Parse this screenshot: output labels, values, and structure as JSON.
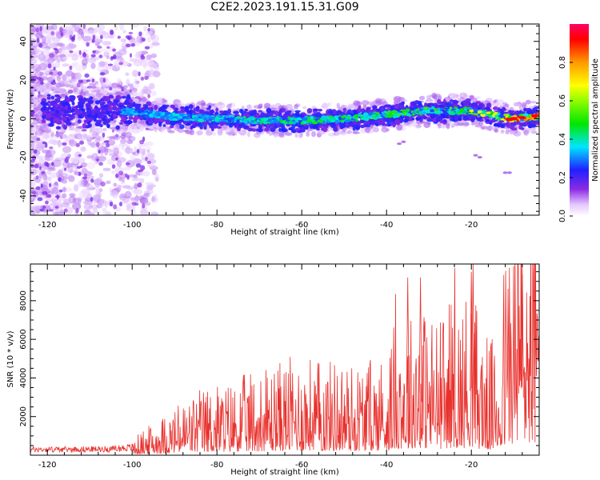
{
  "title": "C2E2.2023.191.15.31.G09",
  "chart_data": [
    {
      "type": "heatmap",
      "xlabel": "Height of straight line (km)",
      "ylabel": "Frequency (Hz)",
      "xlim": [
        -124,
        -4
      ],
      "ylim": [
        -50,
        49
      ],
      "x_ticks": [
        "-120",
        "-100",
        "-80",
        "-60",
        "-40",
        "-20"
      ],
      "x_tick_values": [
        -120,
        -100,
        -80,
        -60,
        -40,
        -20
      ],
      "y_ticks": [
        "-40",
        "-20",
        "0",
        "20",
        "40"
      ],
      "y_tick_values": [
        -40,
        -20,
        0,
        20,
        40
      ],
      "colorbar": {
        "label": "Normalized spectral amplitude",
        "ticks": [
          "0.0",
          "0.2",
          "0.4",
          "0.6",
          "0.8"
        ],
        "tick_values": [
          0.0,
          0.2,
          0.4,
          0.6,
          0.8
        ],
        "range": [
          0,
          1
        ]
      },
      "ridge": {
        "description_points_x": [
          -103,
          -90,
          -80,
          -70,
          -60,
          -50,
          -40,
          -30,
          -20,
          -10,
          -4
        ],
        "center_freq": [
          4,
          1,
          0,
          -1,
          -1,
          0,
          2,
          4,
          4,
          0,
          1
        ],
        "peak_amplitude": [
          0.3,
          0.35,
          0.35,
          0.4,
          0.45,
          0.45,
          0.5,
          0.5,
          0.5,
          0.95,
          0.9
        ]
      }
    },
    {
      "type": "line",
      "xlabel": "Height of straight line (km)",
      "ylabel": "SNR (10 * v/v)",
      "xlim": [
        -124,
        -4
      ],
      "ylim": [
        0,
        9900
      ],
      "x_ticks": [
        "-120",
        "-100",
        "-80",
        "-60",
        "-40",
        "-20"
      ],
      "x_tick_values": [
        -120,
        -100,
        -80,
        -60,
        -40,
        -20
      ],
      "y_ticks": [
        "2000",
        "4000",
        "6000",
        "8000"
      ],
      "y_tick_values": [
        2000,
        4000,
        6000,
        8000
      ],
      "series": [
        {
          "color": "#e8312d",
          "x": [
            -124,
            -115,
            -105,
            -100,
            -96,
            -92,
            -88,
            -84,
            -80,
            -76,
            -72,
            -68,
            -64,
            -60,
            -56,
            -52,
            -48,
            -44,
            -40,
            -37,
            -35,
            -33,
            -30,
            -27,
            -25,
            -22,
            -20,
            -18,
            -16,
            -14,
            -12,
            -10,
            -8,
            -6,
            -4
          ],
          "values": [
            300,
            300,
            320,
            400,
            700,
            1000,
            1300,
            1600,
            1700,
            1800,
            2000,
            2100,
            2300,
            2400,
            2300,
            2300,
            2200,
            2300,
            2500,
            3500,
            3200,
            3800,
            3500,
            3300,
            3800,
            3600,
            4500,
            3200,
            2800,
            2700,
            5000,
            6000,
            6800,
            6500,
            6200
          ],
          "peaks": [
            9200,
            9200,
            9500,
            9900,
            9900
          ]
        }
      ]
    }
  ]
}
